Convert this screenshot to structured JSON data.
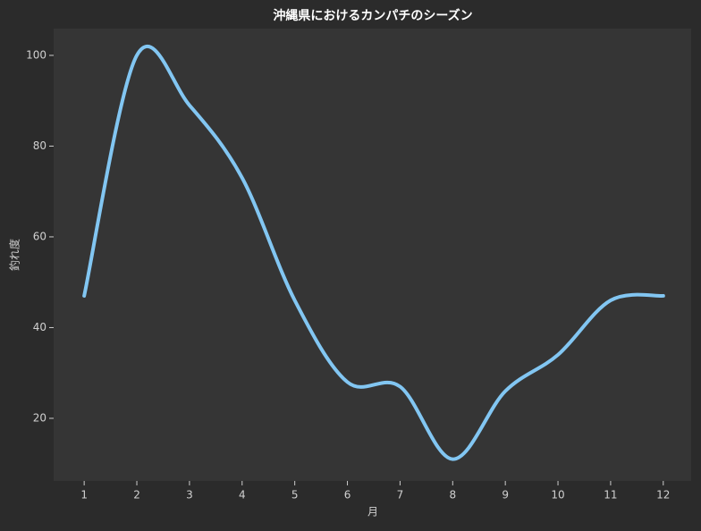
{
  "chart_data": {
    "type": "line",
    "title": "沖縄県におけるカンパチのシーズン",
    "x_label": "月",
    "y_label": "釣れ度",
    "x": [
      1,
      2,
      3,
      4,
      5,
      6,
      7,
      8,
      9,
      10,
      11,
      12
    ],
    "series": [
      {
        "name": "釣れ度",
        "color": "#82c6f2",
        "values": [
          47,
          100,
          89,
          73,
          46,
          28,
          27,
          11,
          26,
          34,
          46,
          47
        ]
      }
    ],
    "xlim": [
      0.42,
      12.53
    ],
    "xticks": [
      1,
      2,
      3,
      4,
      5,
      6,
      7,
      8,
      9,
      10,
      11,
      12
    ],
    "ylim": [
      6.2,
      105.9
    ],
    "yticks": [
      20,
      40,
      60,
      80,
      100
    ],
    "grid": false
  }
}
